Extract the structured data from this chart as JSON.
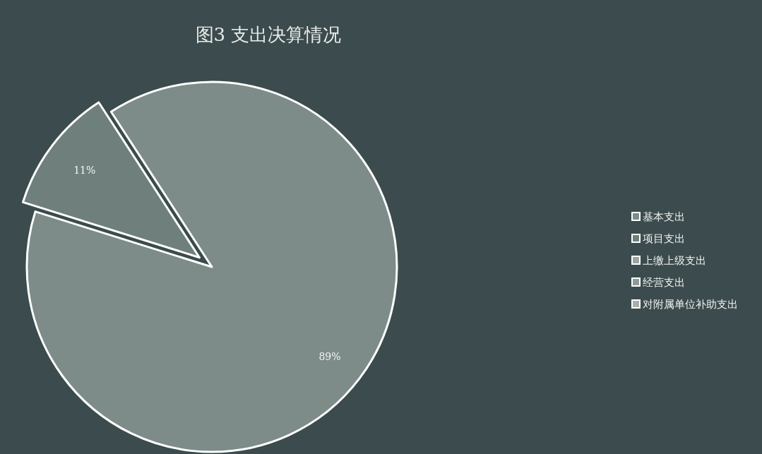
{
  "chart_data": {
    "type": "pie",
    "title": "图3 支出决算情况",
    "categories": [
      "基本支出",
      "项目支出",
      "上缴上级支出",
      "经营支出",
      "对附属单位补助支出"
    ],
    "values": [
      89,
      11,
      0,
      0,
      0
    ],
    "value_labels": [
      "89%",
      "11%",
      null,
      null,
      null
    ],
    "colors": [
      "#7d8c88",
      "#6f807c",
      "#9aa6a3",
      "#8e9a97",
      "#a5b0ad"
    ],
    "legend": "right"
  }
}
